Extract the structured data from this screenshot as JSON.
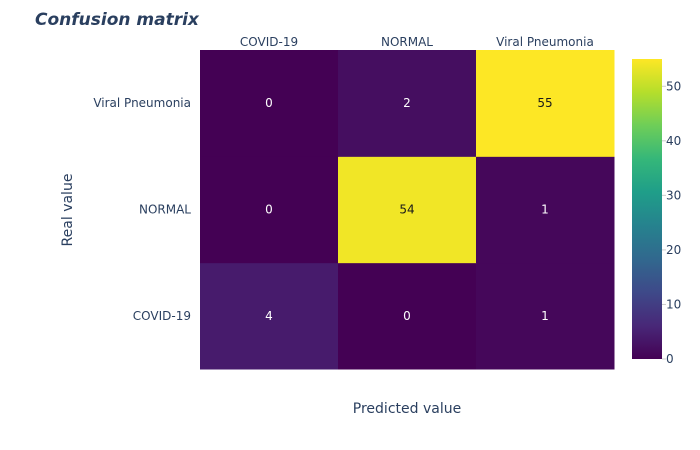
{
  "chart_data": {
    "type": "heatmap",
    "title": "Confusion matrix",
    "xlabel": "Predicted value",
    "ylabel": "Real value",
    "x_categories": [
      "COVID-19",
      "NORMAL",
      "Viral Pneumonia"
    ],
    "y_categories": [
      "COVID-19",
      "NORMAL",
      "Viral Pneumonia"
    ],
    "values": [
      [
        4,
        0,
        1
      ],
      [
        0,
        54,
        1
      ],
      [
        0,
        2,
        55
      ]
    ],
    "colorscale": "Viridis",
    "zmin": 0,
    "zmax": 55,
    "colorbar_ticks": [
      0,
      10,
      20,
      30,
      40,
      50
    ],
    "x_axis_side": "top",
    "y_order": "bottom-to-top",
    "grid": false,
    "legend": "colorbar-right"
  }
}
